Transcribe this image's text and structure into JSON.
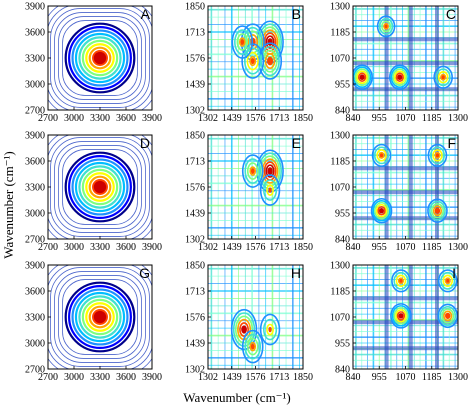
{
  "chart_data": [
    {
      "type": "heatmap",
      "panel": "A",
      "axis_range": [
        2700,
        3900
      ],
      "x_ticks": [
        "2700",
        "3000",
        "3300",
        "3600",
        "3900"
      ],
      "y_ticks": [
        "3900",
        "3600",
        "3300",
        "3000",
        "2700"
      ],
      "peaks": [
        {
          "x": 3300,
          "y": 3300,
          "level": 1.0
        }
      ]
    },
    {
      "type": "heatmap",
      "panel": "B",
      "axis_range": [
        1302,
        1850
      ],
      "x_ticks": [
        "1302",
        "1439",
        "1576",
        "1713",
        "1850"
      ],
      "y_ticks": [
        "1850",
        "1713",
        "1576",
        "1439",
        "1302"
      ],
      "peaks": [
        {
          "x": 1660,
          "y": 1660,
          "level": 1.0
        },
        {
          "x": 1560,
          "y": 1660,
          "level": 0.7
        },
        {
          "x": 1660,
          "y": 1560,
          "level": 0.7
        },
        {
          "x": 1560,
          "y": 1560,
          "level": 0.6
        },
        {
          "x": 1500,
          "y": 1660,
          "level": 0.5
        }
      ]
    },
    {
      "type": "heatmap",
      "panel": "C",
      "axis_range": [
        840,
        1300
      ],
      "x_ticks": [
        "840",
        "955",
        "1070",
        "1185",
        "1300"
      ],
      "y_ticks": [
        "1300",
        "1185",
        "1070",
        "955",
        "840"
      ],
      "peaks": [
        {
          "x": 880,
          "y": 985,
          "level": 0.8
        },
        {
          "x": 1045,
          "y": 985,
          "level": 0.8
        },
        {
          "x": 1235,
          "y": 985,
          "level": 0.6
        },
        {
          "x": 985,
          "y": 1210,
          "level": 0.5
        }
      ]
    },
    {
      "type": "heatmap",
      "panel": "D",
      "axis_range": [
        2700,
        3900
      ],
      "x_ticks": [
        "2700",
        "3000",
        "3300",
        "3600",
        "3900"
      ],
      "y_ticks": [
        "3900",
        "3600",
        "3300",
        "3000",
        "2700"
      ],
      "peaks": [
        {
          "x": 3300,
          "y": 3300,
          "level": 1.0
        }
      ]
    },
    {
      "type": "heatmap",
      "panel": "E",
      "axis_range": [
        1302,
        1850
      ],
      "x_ticks": [
        "1302",
        "1439",
        "1576",
        "1713",
        "1850"
      ],
      "y_ticks": [
        "1850",
        "1713",
        "1576",
        "1439",
        "1302"
      ],
      "peaks": [
        {
          "x": 1660,
          "y": 1660,
          "level": 1.0
        },
        {
          "x": 1560,
          "y": 1660,
          "level": 0.5
        },
        {
          "x": 1660,
          "y": 1560,
          "level": 0.4
        }
      ]
    },
    {
      "type": "heatmap",
      "panel": "F",
      "axis_range": [
        840,
        1300
      ],
      "x_ticks": [
        "840",
        "955",
        "1070",
        "1185",
        "1300"
      ],
      "y_ticks": [
        "1300",
        "1185",
        "1070",
        "955",
        "840"
      ],
      "peaks": [
        {
          "x": 965,
          "y": 965,
          "level": 0.8
        },
        {
          "x": 1210,
          "y": 965,
          "level": 0.7
        },
        {
          "x": 965,
          "y": 1210,
          "level": 0.6
        },
        {
          "x": 1210,
          "y": 1210,
          "level": 0.6
        }
      ]
    },
    {
      "type": "heatmap",
      "panel": "G",
      "axis_range": [
        2700,
        3900
      ],
      "x_ticks": [
        "2700",
        "3000",
        "3300",
        "3600",
        "3900"
      ],
      "y_ticks": [
        "3900",
        "3600",
        "3300",
        "3000",
        "2700"
      ],
      "peaks": [
        {
          "x": 3300,
          "y": 3300,
          "level": 1.0
        }
      ]
    },
    {
      "type": "heatmap",
      "panel": "H",
      "axis_range": [
        1302,
        1850
      ],
      "x_ticks": [
        "1302",
        "1439",
        "1576",
        "1713",
        "1850"
      ],
      "y_ticks": [
        "1850",
        "1713",
        "1576",
        "1439",
        "1302"
      ],
      "peaks": [
        {
          "x": 1510,
          "y": 1510,
          "level": 0.9
        },
        {
          "x": 1560,
          "y": 1420,
          "level": 0.5
        },
        {
          "x": 1660,
          "y": 1510,
          "level": 0.4
        }
      ]
    },
    {
      "type": "heatmap",
      "panel": "I",
      "axis_range": [
        840,
        1300
      ],
      "x_ticks": [
        "840",
        "955",
        "1070",
        "1185",
        "1300"
      ],
      "y_ticks": [
        "1300",
        "1185",
        "1070",
        "955",
        "840"
      ],
      "peaks": [
        {
          "x": 1050,
          "y": 1075,
          "level": 0.8
        },
        {
          "x": 1255,
          "y": 1075,
          "level": 0.7
        },
        {
          "x": 1050,
          "y": 1230,
          "level": 0.6
        },
        {
          "x": 1255,
          "y": 1230,
          "level": 0.6
        }
      ]
    }
  ],
  "axes": {
    "xlabel": "Wavenumber (cm⁻¹)",
    "ylabel": "Wavenumber (cm⁻¹)"
  },
  "colors": [
    "#00008b",
    "#0000ff",
    "#1e90ff",
    "#00bfff",
    "#40e0d0",
    "#7fff7f",
    "#ffff00",
    "#ffa500",
    "#ff4500",
    "#cc0000"
  ]
}
